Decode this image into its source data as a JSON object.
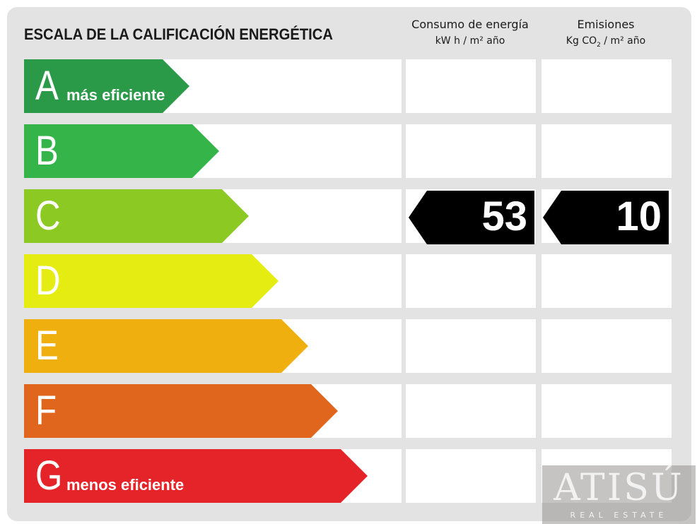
{
  "header": {
    "title": "ESCALA DE LA CALIFICACIÓN ENERGÉTICA",
    "energy": {
      "label": "Consumo de energía",
      "unit": "kW h / m² año"
    },
    "emissions": {
      "label": "Emisiones",
      "unit_pre": "Kg CO",
      "unit_sub": "2",
      "unit_post": " / m² año"
    }
  },
  "ratings": [
    {
      "letter": "A",
      "sublabel": "más eficiente",
      "color": "#2b9a48",
      "fill": 0.39
    },
    {
      "letter": "B",
      "sublabel": "",
      "color": "#35b44a",
      "fill": 0.46
    },
    {
      "letter": "C",
      "sublabel": "",
      "color": "#8cc923",
      "fill": 0.53
    },
    {
      "letter": "D",
      "sublabel": "",
      "color": "#e5ec12",
      "fill": 0.6
    },
    {
      "letter": "E",
      "sublabel": "",
      "color": "#efb00f",
      "fill": 0.67
    },
    {
      "letter": "F",
      "sublabel": "",
      "color": "#e0651d",
      "fill": 0.74
    },
    {
      "letter": "G",
      "sublabel": "menos eficiente",
      "color": "#e42428",
      "fill": 0.81
    }
  ],
  "result": {
    "rating": "C",
    "energy_value": "53",
    "emissions_value": "10",
    "color": "#000000"
  },
  "logo": {
    "brand": "ATISÚ",
    "tagline": "REAL ESTATE"
  }
}
